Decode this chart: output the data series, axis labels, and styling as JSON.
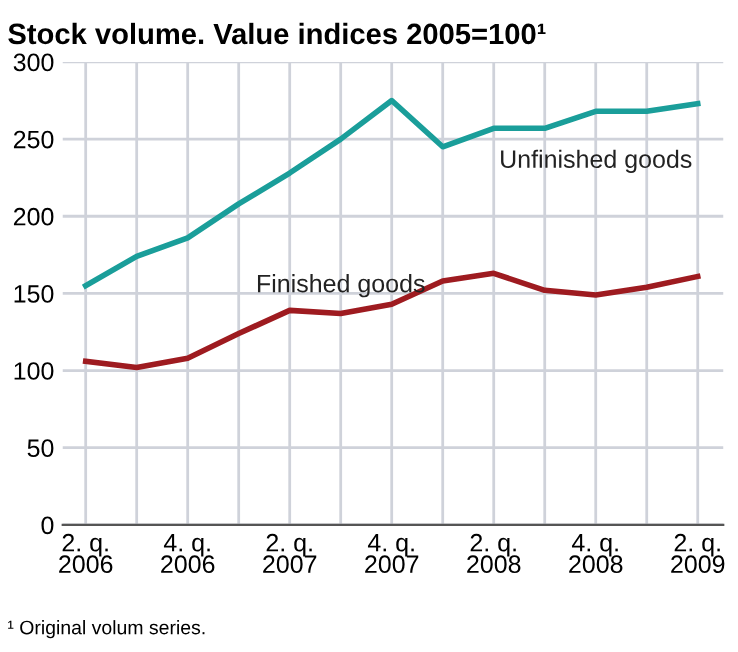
{
  "chart_data": {
    "type": "line",
    "title": "Stock volume. Value indices 2005=100¹",
    "categories": [
      "2. q.\n2006",
      null,
      "4. q.\n2006",
      null,
      "2. q.\n2007",
      null,
      "4. q.\n2007",
      null,
      "2. q.\n2008",
      null,
      "4. q.\n2008",
      null,
      "2. q.\n2009"
    ],
    "series": [
      {
        "name": "Unfinished goods",
        "color": "#1a9e9a",
        "values": [
          155,
          174,
          186,
          208,
          228,
          250,
          275,
          245,
          257,
          257,
          268,
          268,
          273
        ]
      },
      {
        "name": "Finished goods",
        "color": "#9e1b20",
        "values": [
          106,
          102,
          108,
          124,
          139,
          137,
          143,
          158,
          163,
          152,
          149,
          154,
          161
        ]
      }
    ],
    "ylim": [
      0,
      300
    ],
    "yticks": [
      0,
      50,
      100,
      150,
      200,
      250,
      300
    ],
    "grid": true,
    "legend": false,
    "marker": "none",
    "line_style": "solid",
    "annotations": [
      "¹ Original volum series."
    ]
  }
}
